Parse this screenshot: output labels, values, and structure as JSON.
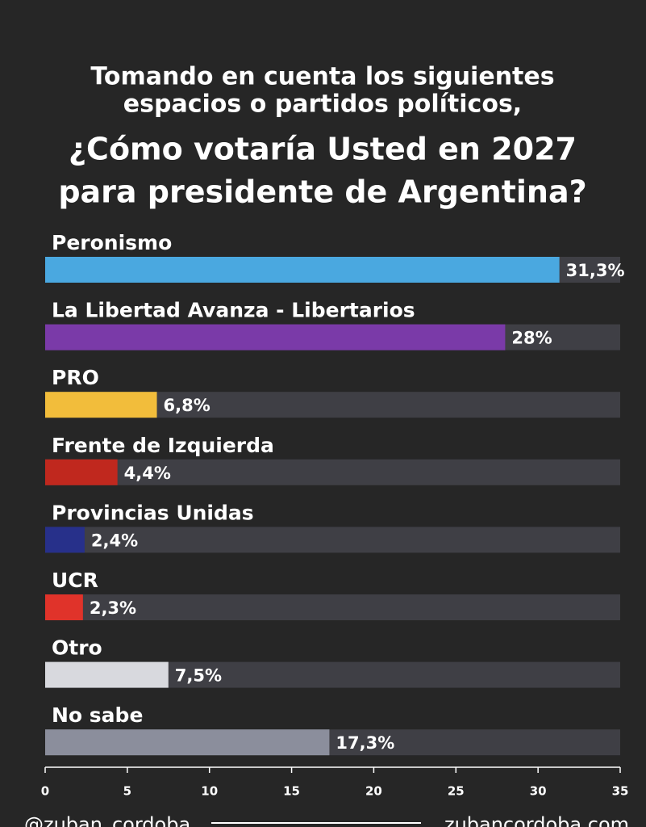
{
  "chart_data": {
    "type": "bar",
    "orientation": "horizontal",
    "subtitle_lines": [
      "Tomando en cuenta los siguientes",
      "espacios o partidos políticos,"
    ],
    "title_lines": [
      "¿Cómo votaría Usted en 2027",
      "para presidente de Argentina?"
    ],
    "categories": [
      "Peronismo",
      "La Libertad Avanza - Libertarios",
      "PRO",
      "Frente de Izquierda",
      "Provincias Unidas",
      "UCR",
      "Otro",
      "No sabe"
    ],
    "values": [
      31.3,
      28,
      6.8,
      4.4,
      2.4,
      2.3,
      7.5,
      17.3
    ],
    "value_labels": [
      "31,3%",
      "28%",
      "6,8%",
      "4,4%",
      "2,4%",
      "2,3%",
      "7,5%",
      "17,3%"
    ],
    "colors": [
      "#4aa8e0",
      "#7a3aa8",
      "#f2bd3b",
      "#c0281e",
      "#27308a",
      "#e0332a",
      "#d8d9de",
      "#8b8e9c"
    ],
    "xlim": [
      0,
      35
    ],
    "xticks": [
      0,
      5,
      10,
      15,
      20,
      25,
      30,
      35
    ],
    "footer_left": "@zuban_cordoba",
    "footer_right": "zubancordoba.com"
  }
}
